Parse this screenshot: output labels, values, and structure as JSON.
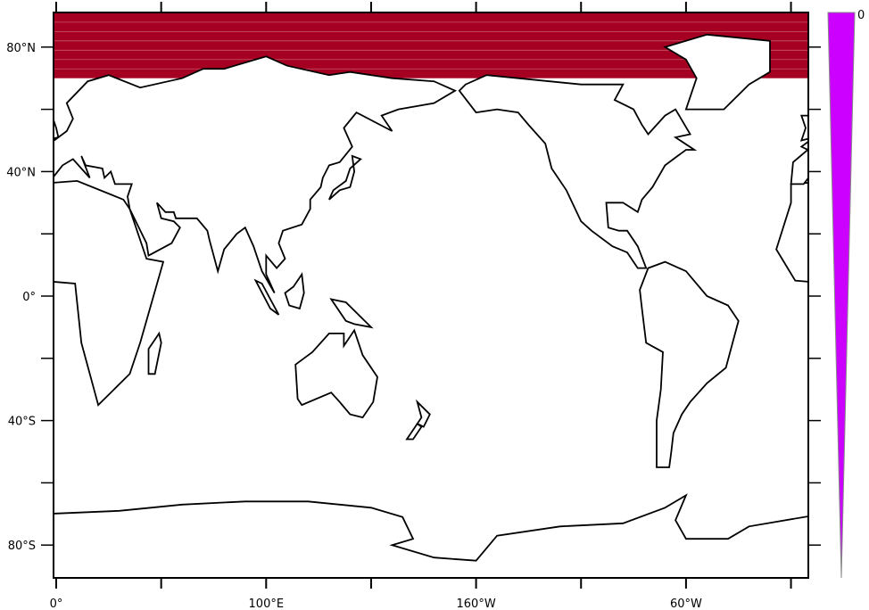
{
  "map": {
    "projection": "cylindrical-equidistant",
    "center_longitude": 180,
    "lat_range": [
      -90,
      90
    ],
    "x_tick_labels": [
      {
        "lon": 0,
        "label": "0°"
      },
      {
        "lon": 100,
        "label": "100°E"
      },
      {
        "lon": 200,
        "label": "160°W"
      },
      {
        "lon": 300,
        "label": "60°W"
      }
    ],
    "x_ticks_minor": [
      50,
      150,
      250,
      350
    ],
    "y_tick_labels": [
      {
        "lat": 80,
        "label": "80°N"
      },
      {
        "lat": 40,
        "label": "40°N"
      },
      {
        "lat": 0,
        "label": "0°"
      },
      {
        "lat": -40,
        "label": "40°S"
      },
      {
        "lat": -80,
        "label": "80°S"
      }
    ],
    "y_ticks_minor": [
      60,
      20,
      -20,
      -60
    ],
    "shaded_field": {
      "lat_min": 70,
      "lat_max": 90,
      "color": "#a50021",
      "stripe_color": "#c8586c"
    },
    "land_color": "#ffffff",
    "coast_color": "#000000"
  },
  "colorbar": {
    "label": "0",
    "color": "#cc00ff",
    "border": "#888888"
  }
}
